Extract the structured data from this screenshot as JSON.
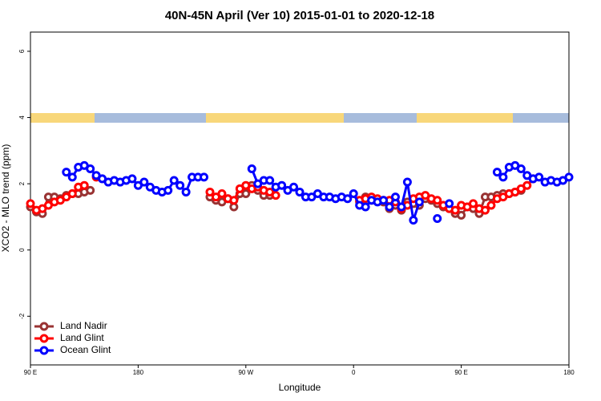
{
  "chart_data": {
    "type": "line",
    "title": "40N-45N April (Ver 10)   2015-01-01 to 2020-12-18",
    "xlabel": "Longitude",
    "ylabel": "XCO2 - MLO trend (ppm)",
    "x": [
      90,
      95,
      100,
      105,
      110,
      115,
      120,
      125,
      130,
      135,
      140,
      145,
      150,
      155,
      160,
      165,
      170,
      175,
      180,
      185,
      190,
      195,
      200,
      205,
      210,
      215,
      220,
      225,
      230,
      235,
      240,
      245,
      250,
      255,
      260,
      265,
      270,
      275,
      280,
      285,
      290,
      295,
      300,
      305,
      310,
      315,
      320,
      325,
      330,
      335,
      340,
      345,
      350,
      355,
      360,
      365,
      370,
      375,
      380,
      385,
      390,
      395,
      400,
      405,
      410,
      415,
      420,
      425,
      430,
      435,
      440,
      445,
      450,
      455,
      460,
      465,
      470,
      475,
      480,
      485,
      490,
      495,
      500,
      505,
      510,
      515,
      520,
      525,
      530,
      535,
      540
    ],
    "xlim": [
      90,
      540
    ],
    "xticks": [
      {
        "value": 90,
        "label": "90 E"
      },
      180,
      {
        "value": 270,
        "label": "90 W"
      },
      {
        "value": 360,
        "label": "0"
      },
      {
        "value": 450,
        "label": "90 E"
      },
      {
        "value": 540,
        "label": "180"
      }
    ],
    "ylim": [
      -3.47,
      6.58
    ],
    "yticks": [
      -2,
      0,
      2,
      4,
      6
    ],
    "legend": "bottomleft",
    "series": [
      {
        "name": "Land Nadir",
        "color": "#993333",
        "values": [
          1.3,
          1.15,
          1.1,
          1.6,
          1.6,
          1.55,
          1.65,
          1.7,
          1.7,
          1.75,
          1.8,
          null,
          null,
          null,
          null,
          null,
          null,
          null,
          null,
          null,
          null,
          null,
          null,
          null,
          null,
          null,
          null,
          null,
          null,
          null,
          1.6,
          1.5,
          1.45,
          1.55,
          1.3,
          1.7,
          1.7,
          1.95,
          1.8,
          1.65,
          1.65,
          null,
          null,
          null,
          null,
          null,
          null,
          null,
          null,
          null,
          null,
          null,
          null,
          null,
          null,
          1.45,
          1.6,
          1.5,
          1.5,
          1.45,
          1.25,
          1.35,
          1.2,
          1.45,
          1.4,
          1.35,
          1.55,
          1.5,
          1.4,
          1.3,
          1.25,
          1.1,
          1.05,
          1.3,
          1.25,
          1.1,
          1.6,
          1.6,
          1.65,
          1.7,
          1.7,
          1.75,
          1.8,
          null,
          null,
          null,
          null,
          null,
          null,
          null,
          null
        ]
      },
      {
        "name": "Land Glint",
        "color": "#ff0000",
        "values": [
          1.4,
          1.2,
          1.25,
          1.35,
          1.45,
          1.5,
          1.6,
          1.7,
          1.9,
          1.95,
          null,
          2.2,
          null,
          null,
          null,
          null,
          null,
          null,
          null,
          null,
          null,
          null,
          null,
          null,
          null,
          null,
          null,
          null,
          null,
          null,
          1.75,
          1.6,
          1.7,
          1.55,
          1.5,
          1.85,
          1.95,
          1.85,
          1.9,
          1.8,
          1.75,
          1.65,
          null,
          null,
          null,
          null,
          null,
          null,
          null,
          null,
          null,
          null,
          null,
          null,
          null,
          1.5,
          1.55,
          1.6,
          1.55,
          1.5,
          1.5,
          1.45,
          1.25,
          1.35,
          1.55,
          1.6,
          1.65,
          1.55,
          1.5,
          1.35,
          1.25,
          1.2,
          1.35,
          1.3,
          1.4,
          1.25,
          1.2,
          1.35,
          1.55,
          1.6,
          1.7,
          1.75,
          1.85,
          1.95,
          2.15,
          null,
          null,
          null,
          null,
          null,
          null
        ]
      },
      {
        "name": "Ocean Glint",
        "color": "#0000ff",
        "values": [
          null,
          null,
          null,
          null,
          null,
          null,
          2.35,
          2.2,
          2.5,
          2.55,
          2.45,
          2.25,
          2.15,
          2.05,
          2.1,
          2.05,
          2.1,
          2.15,
          1.95,
          2.05,
          1.9,
          1.8,
          1.75,
          1.8,
          2.1,
          1.95,
          1.75,
          2.2,
          2.2,
          2.2,
          null,
          null,
          null,
          null,
          null,
          null,
          null,
          2.45,
          2.0,
          2.1,
          2.1,
          1.9,
          1.95,
          1.8,
          1.9,
          1.75,
          1.6,
          1.6,
          1.7,
          1.6,
          1.6,
          1.55,
          1.6,
          1.55,
          1.7,
          1.35,
          1.3,
          1.5,
          1.45,
          1.5,
          1.3,
          1.6,
          1.3,
          2.05,
          0.9,
          1.45,
          null,
          null,
          0.95,
          null,
          1.4,
          null,
          null,
          null,
          null,
          null,
          null,
          null,
          2.35,
          2.2,
          2.5,
          2.55,
          2.45,
          2.25,
          2.15,
          2.2,
          2.05,
          2.1,
          2.05,
          2.1,
          2.2
        ]
      }
    ]
  }
}
